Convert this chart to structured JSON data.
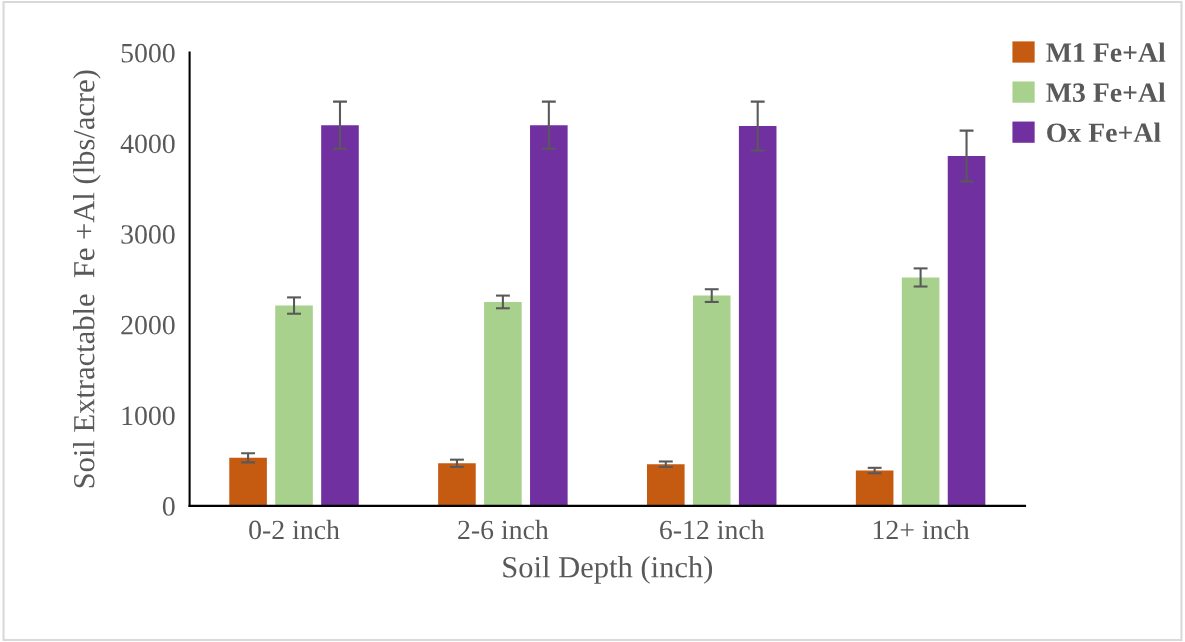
{
  "chart_data": {
    "type": "bar",
    "xlabel": "Soil Depth (inch)",
    "ylabel": "Soil Extractable  Fe +Al (lbs/acre)",
    "categories": [
      "0-2 inch",
      "2-6 inch",
      "6-12 inch",
      "12+ inch"
    ],
    "series": [
      {
        "name": "M1 Fe+Al",
        "color": "#c55a11",
        "values": [
          530,
          470,
          460,
          390
        ],
        "errors": [
          50,
          40,
          30,
          30
        ]
      },
      {
        "name": "M3 Fe+Al",
        "color": "#a9d18e",
        "values": [
          2210,
          2250,
          2320,
          2520
        ],
        "errors": [
          90,
          70,
          70,
          100
        ]
      },
      {
        "name": "Ox Fe+Al",
        "color": "#7030a0",
        "values": [
          4200,
          4200,
          4190,
          3860
        ],
        "errors": [
          260,
          260,
          270,
          280
        ]
      }
    ],
    "ylim": [
      0,
      5000
    ],
    "yticks": [
      0,
      1000,
      2000,
      3000,
      4000,
      5000
    ],
    "grid": false,
    "legend": "top right"
  }
}
